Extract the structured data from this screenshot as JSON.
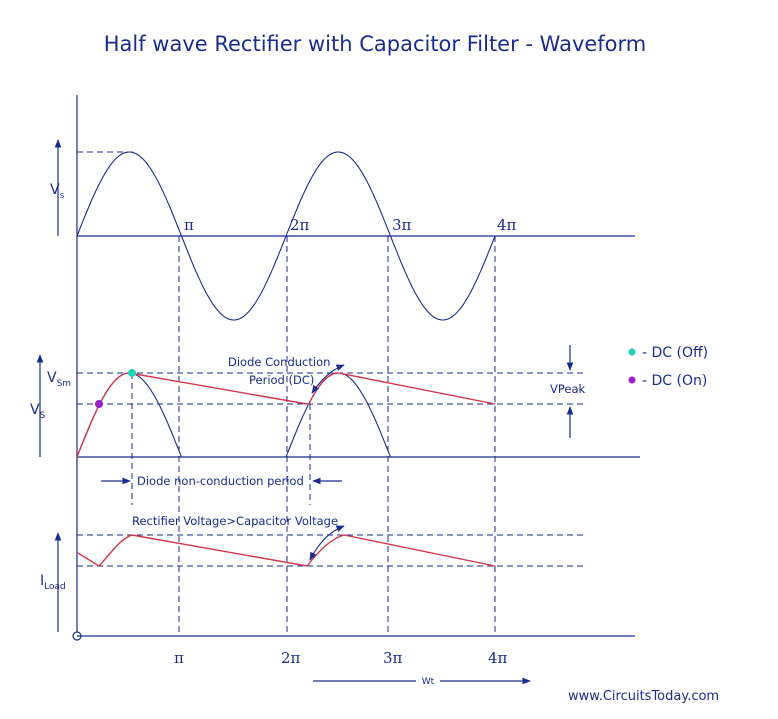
{
  "title": "Half wave Rectifier with Capacitor Filter - Waveform",
  "top_panel": {
    "ylabel": "V",
    "ylabel_sub": "s",
    "ticks": [
      "π",
      "2π",
      "3π",
      "4π"
    ]
  },
  "middle_panel": {
    "vsm_label": "V",
    "vsm_sub": "Sm",
    "vs_label": "V",
    "vs_sub": "S",
    "vpeak_label": "VPeak",
    "conduction_label_1": "Diode Conduction",
    "conduction_label_2": "Period (DC)",
    "non_conduction_label": "Diode non-conduction period"
  },
  "bottom_panel": {
    "ylabel": "I",
    "ylabel_sub": "Load",
    "annotation": "Rectifier Voltage>Capacitor Voltage",
    "ticks": [
      "π",
      "2π",
      "3π",
      "4π"
    ],
    "x_axis_label": "Wt"
  },
  "legend": [
    {
      "label": "- DC (Off)",
      "color": "#1ed4b0"
    },
    {
      "label": "- DC (On)",
      "color": "#9b1fc9"
    }
  ],
  "website": "www.CircuitsToday.com",
  "colors": {
    "primary": "#1a2d8c",
    "filter_curve": "#d2364a"
  }
}
